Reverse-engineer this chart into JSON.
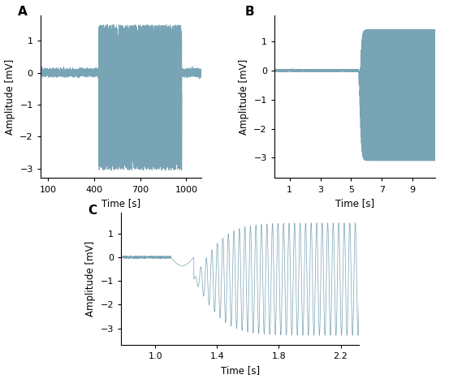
{
  "panel_A": {
    "label": "A",
    "xlim": [
      50,
      1100
    ],
    "ylim": [
      -3.3,
      1.8
    ],
    "xticks": [
      100,
      400,
      700,
      1000
    ],
    "yticks": [
      -3,
      -2,
      -1,
      0,
      1
    ],
    "xlabel": "Time [s]",
    "ylabel": "Amplitude [mV]",
    "noise_region_start": 430,
    "noise_region_end": 970,
    "noise_amplitude_high": 1.5,
    "noise_amplitude_low": -3.05,
    "baseline_noise": 0.05
  },
  "panel_B": {
    "label": "B",
    "xlim": [
      0,
      10.5
    ],
    "ylim": [
      -3.7,
      1.9
    ],
    "xticks": [
      1,
      3,
      5,
      7,
      9
    ],
    "yticks": [
      -3,
      -2,
      -1,
      0,
      1
    ],
    "xlabel": "Time [s]",
    "ylabel": "Amplitude [mV]",
    "quiet_noise": 0.015,
    "osc_start": 5.55,
    "osc_freq": 40.0,
    "amp_max": 1.4,
    "amp_min": -3.1,
    "growth_rate": 8.0,
    "dip_start": 5.48,
    "dip_amp": -0.5
  },
  "panel_C": {
    "label": "C",
    "xlim": [
      0.78,
      2.32
    ],
    "ylim": [
      -3.7,
      1.9
    ],
    "xticks": [
      1.0,
      1.4,
      1.8,
      2.2
    ],
    "yticks": [
      -3,
      -2,
      -1,
      0,
      1
    ],
    "xlabel": "Time [s]",
    "ylabel": "Amplitude [mV]",
    "quiet_noise": 0.015,
    "osc_start": 1.25,
    "osc_freq": 28.0,
    "amp_max": 1.45,
    "amp_min": -3.3,
    "growth_rate": 5.0,
    "trans_start": 1.1,
    "trans_end": 1.25,
    "trans_amp": -0.18
  },
  "line_color": "#6b9aad",
  "line_width": 0.5,
  "line_alpha": 0.9,
  "background_color": "#ffffff",
  "label_fontsize": 11,
  "tick_fontsize": 8,
  "axis_label_fontsize": 8.5
}
